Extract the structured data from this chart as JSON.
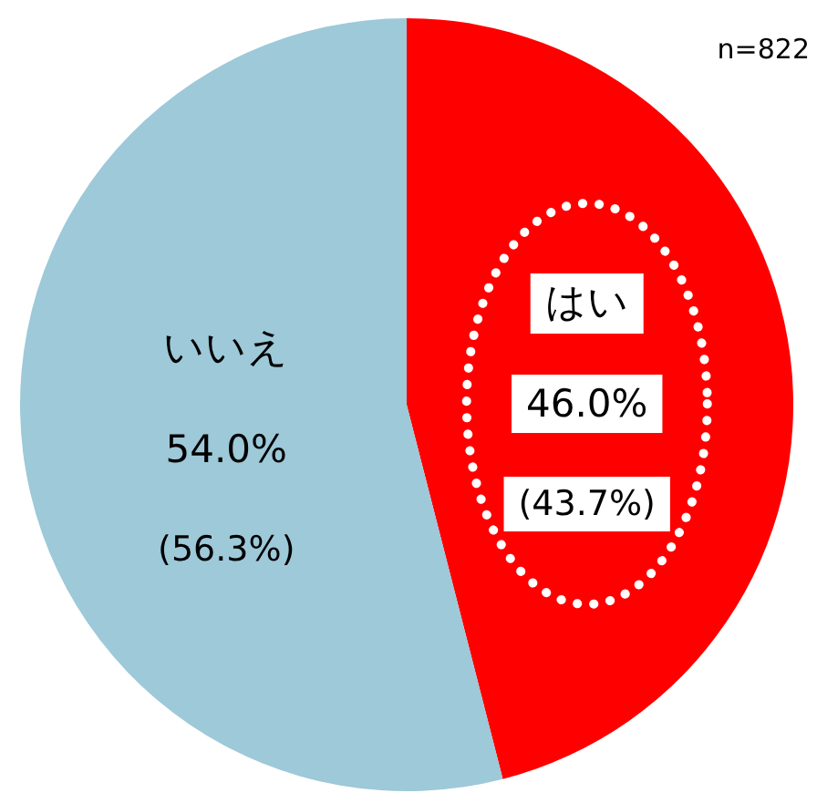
{
  "chart_data": {
    "type": "pie",
    "categories": [
      "はい",
      "いいえ"
    ],
    "values": [
      46.0,
      54.0
    ],
    "colors": [
      "#ff0000",
      "#9dc9d9"
    ],
    "value_labels": [
      "46.0%",
      "54.0%"
    ],
    "annotations": [
      "n=822",
      "(43.7%)",
      "(56.3%)"
    ]
  }
}
